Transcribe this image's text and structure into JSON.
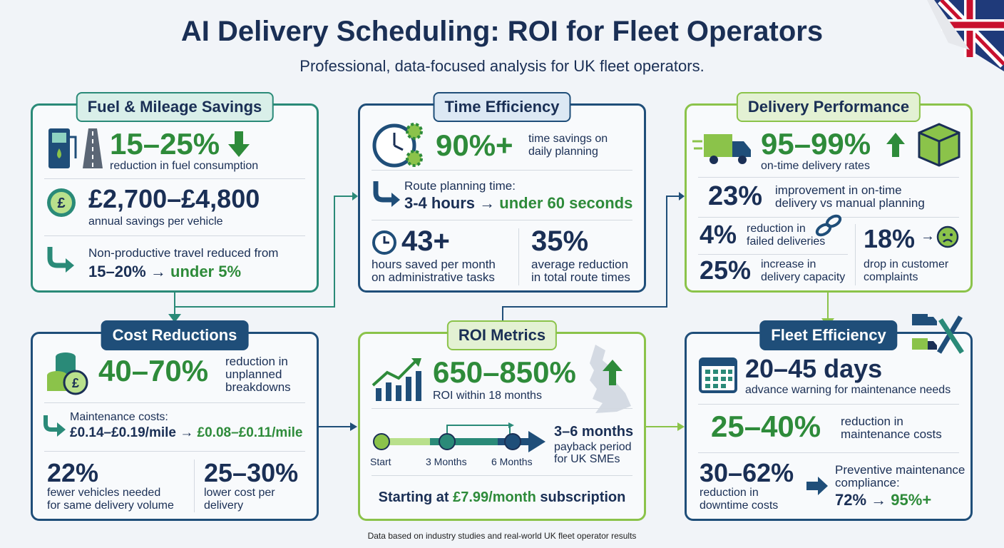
{
  "header": {
    "title": "AI Delivery Scheduling: ROI for Fleet Operators",
    "subtitle": "Professional, data-focused analysis for UK fleet operators."
  },
  "footer": "Data based on industry studies and real-world UK fleet operator results",
  "colors": {
    "navy": "#1a2f55",
    "green": "#2e8b3a",
    "teal": "#2a8a78",
    "light_green": "#8bc34a"
  },
  "fuel": {
    "title": "Fuel & Mileage Savings",
    "stat1": "15–25%",
    "stat1_label": "reduction in fuel consumption",
    "stat2": "£2,700–£4,800",
    "stat2_label": "annual savings per vehicle",
    "travel_label": "Non-productive travel reduced from",
    "travel_from": "15–20%",
    "arrow": "→",
    "travel_to": "under 5%"
  },
  "time": {
    "title": "Time Efficiency",
    "stat1": "90%+",
    "stat1_label_1": "time savings on",
    "stat1_label_2": "daily planning",
    "route_label": "Route planning time:",
    "route_from": "3-4 hours",
    "arrow": "→",
    "route_to": "under 60 seconds",
    "stat2": "43+",
    "stat2_label_1": "hours saved per month",
    "stat2_label_2": "on administrative tasks",
    "stat3": "35%",
    "stat3_label_1": "average reduction",
    "stat3_label_2": "in total route times"
  },
  "delivery": {
    "title": "Delivery Performance",
    "stat1": "95–99%",
    "stat1_label": "on-time delivery rates",
    "stat2": "23%",
    "stat2_label_1": "improvement in on-time",
    "stat2_label_2": "delivery vs manual planning",
    "stat3": "4%",
    "stat3_label_1": "reduction in",
    "stat3_label_2": "failed deliveries",
    "stat4": "25%",
    "stat4_label_1": "increase in",
    "stat4_label_2": "delivery capacity",
    "stat5": "18%",
    "arrow": "→",
    "stat5_label_1": "drop in customer",
    "stat5_label_2": "complaints"
  },
  "cost": {
    "title": "Cost Reductions",
    "stat1": "40–70%",
    "stat1_label_1": "reduction in",
    "stat1_label_2": "unplanned",
    "stat1_label_3": "breakdowns",
    "maint_label": "Maintenance costs:",
    "maint_from": "£0.14–£0.19/mile",
    "arrow": "→",
    "maint_to": "£0.08–£0.11/mile",
    "stat2": "22%",
    "stat2_label_1": "fewer vehicles needed",
    "stat2_label_2": "for same delivery volume",
    "stat3": "25–30%",
    "stat3_label_1": "lower cost per",
    "stat3_label_2": "delivery"
  },
  "roi": {
    "title": "ROI Metrics",
    "stat1": "650–850%",
    "stat1_label": "ROI within 18 months",
    "timeline": [
      "Start",
      "3 Months",
      "6 Months"
    ],
    "payback": "3–6 months",
    "payback_label_1": "payback period",
    "payback_label_2": "for UK SMEs",
    "sub_prefix": "Starting at",
    "sub_price": "£7.99/month",
    "sub_suffix": "subscription"
  },
  "fleet": {
    "title": "Fleet Efficiency",
    "stat1": "20–45 days",
    "stat1_label": "advance warning for maintenance needs",
    "stat2": "25–40%",
    "stat2_label_1": "reduction in",
    "stat2_label_2": "maintenance costs",
    "stat3": "30–62%",
    "stat3_label_1": "reduction in",
    "stat3_label_2": "downtime costs",
    "comp_label_1": "Preventive maintenance",
    "comp_label_2": "compliance:",
    "comp_from": "72%",
    "arrow": "→",
    "comp_to": "95%+"
  }
}
